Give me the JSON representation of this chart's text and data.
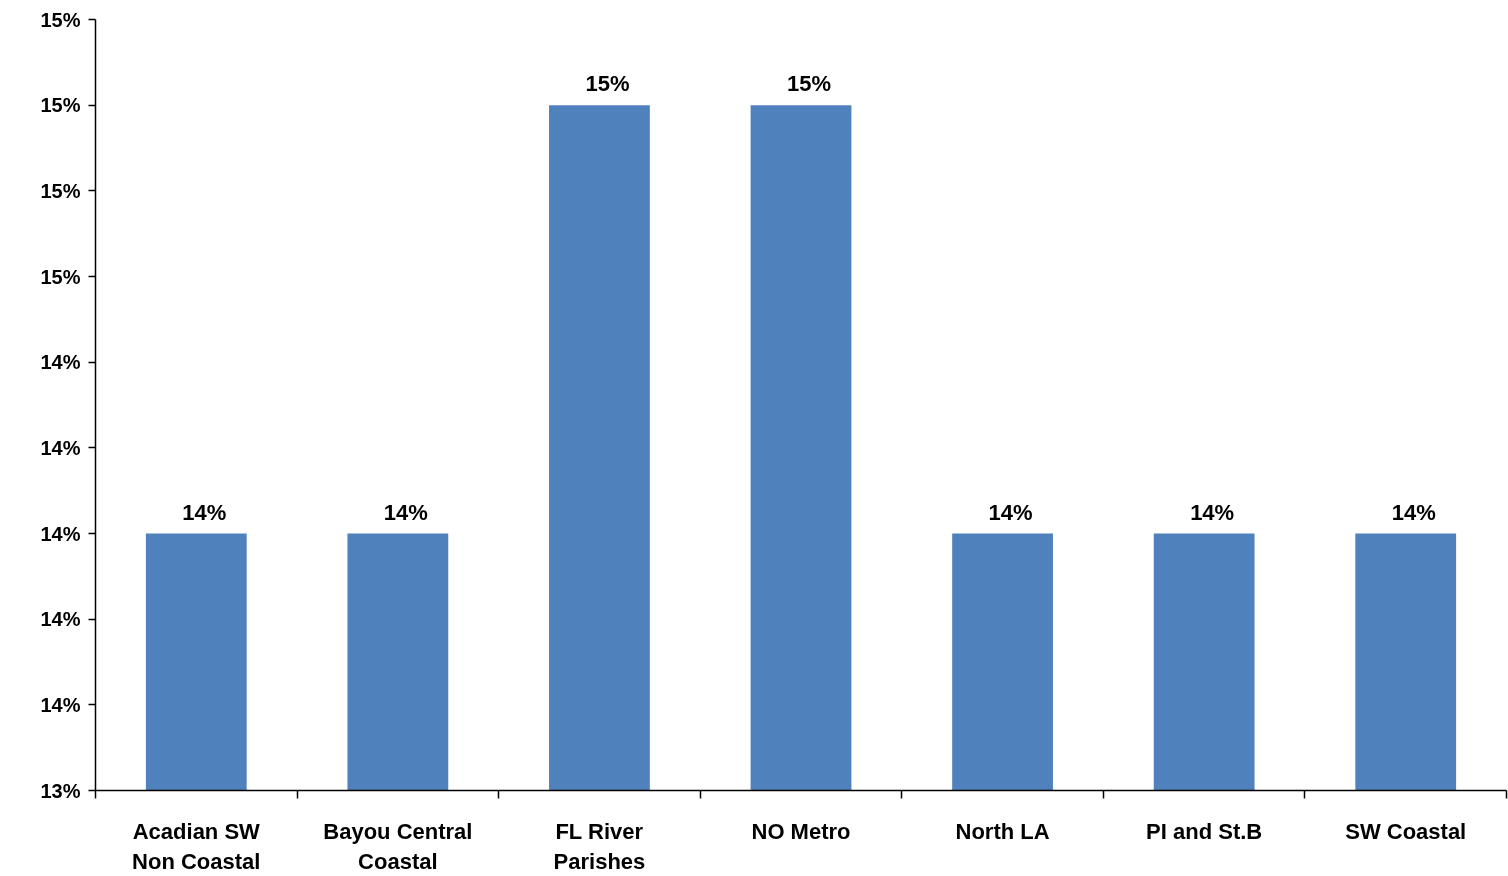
{
  "chart_data": {
    "type": "bar",
    "categories": [
      "Acadian SW\nNon Coastal",
      "Bayou Central\nCoastal",
      "FL River\nParishes",
      "NO Metro",
      "North LA",
      "PI and St.B",
      "SW Coastal"
    ],
    "values": [
      14,
      14,
      15,
      15,
      14,
      14,
      14
    ],
    "value_labels": [
      "14%",
      "14%",
      "15%",
      "15%",
      "14%",
      "14%",
      "14%"
    ],
    "color": "#4f81bd",
    "ylim": [
      13.4,
      15.2
    ],
    "yticks": [
      {
        "value": 13.4,
        "label": "13%"
      },
      {
        "value": 13.6,
        "label": "14%"
      },
      {
        "value": 13.8,
        "label": "14%"
      },
      {
        "value": 14.0,
        "label": "14%"
      },
      {
        "value": 14.2,
        "label": "14%"
      },
      {
        "value": 14.4,
        "label": "14%"
      },
      {
        "value": 14.6,
        "label": "15%"
      },
      {
        "value": 14.8,
        "label": "15%"
      },
      {
        "value": 15.0,
        "label": "15%"
      },
      {
        "value": 15.2,
        "label": "15%"
      }
    ]
  }
}
